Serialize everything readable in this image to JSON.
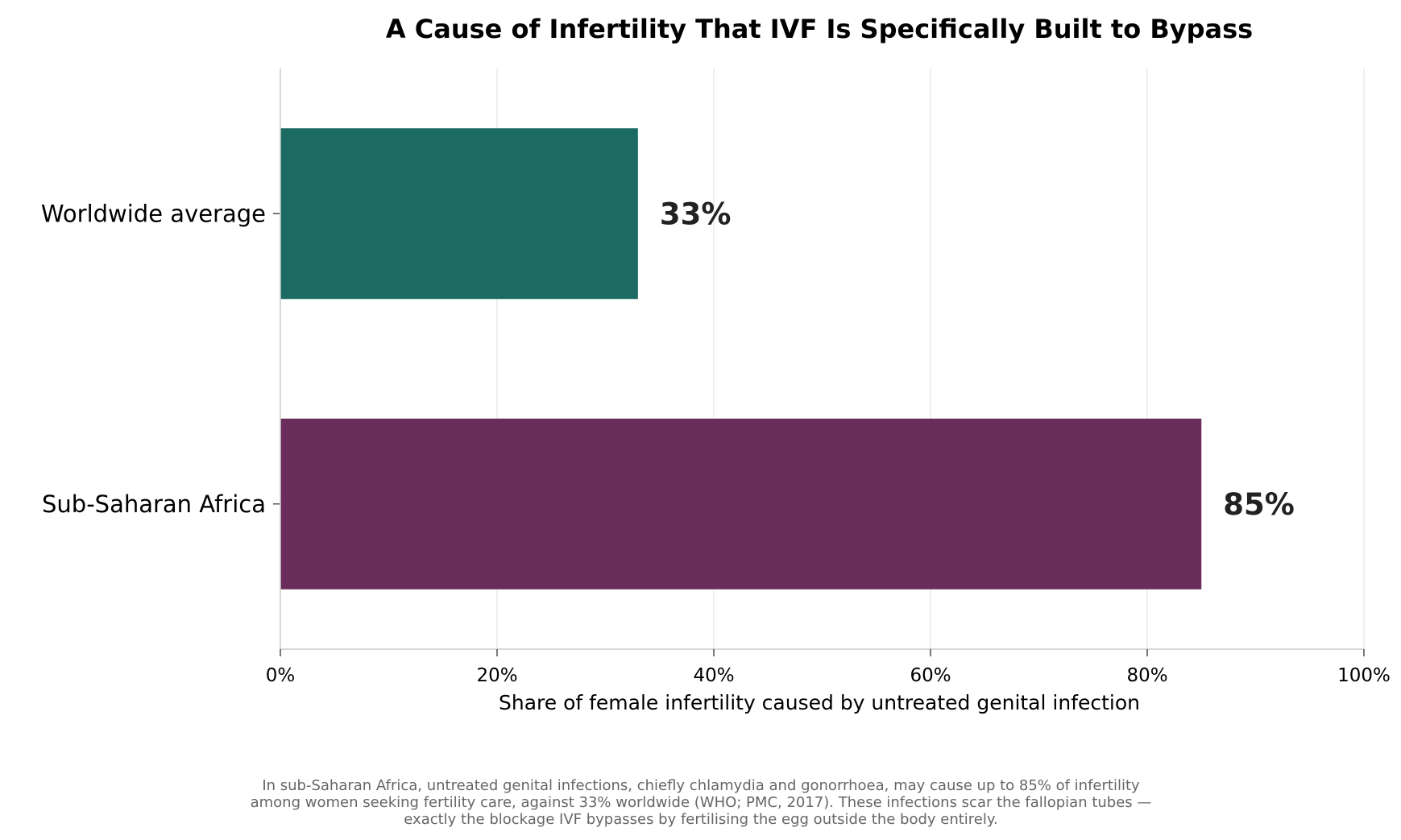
{
  "chart_data": {
    "type": "bar",
    "orientation": "horizontal",
    "title": "A Cause of Infertility That IVF Is Specifically Built to Bypass",
    "xlabel": "Share of female infertility caused by untreated genital infection",
    "ylabel": "",
    "xlim": [
      0,
      100
    ],
    "x_ticks": [
      0,
      20,
      40,
      60,
      80,
      100
    ],
    "x_tick_labels": [
      "0%",
      "20%",
      "40%",
      "60%",
      "80%",
      "100%"
    ],
    "grid": "vertical",
    "categories": [
      "Worldwide average",
      "Sub-Saharan Africa"
    ],
    "values": [
      33,
      85
    ],
    "data_labels": [
      "33%",
      "85%"
    ],
    "colors": [
      "#1c6b63",
      "#6a2c5b"
    ],
    "caption": [
      "In sub-Saharan Africa, untreated genital infections, chiefly chlamydia and gonorrhoea, may cause up to 85% of infertility",
      "among women seeking fertility care, against 33% worldwide (WHO; PMC, 2017). These infections scar the fallopian tubes —",
      "exactly the blockage IVF bypasses by fertilising the egg outside the body entirely."
    ]
  }
}
